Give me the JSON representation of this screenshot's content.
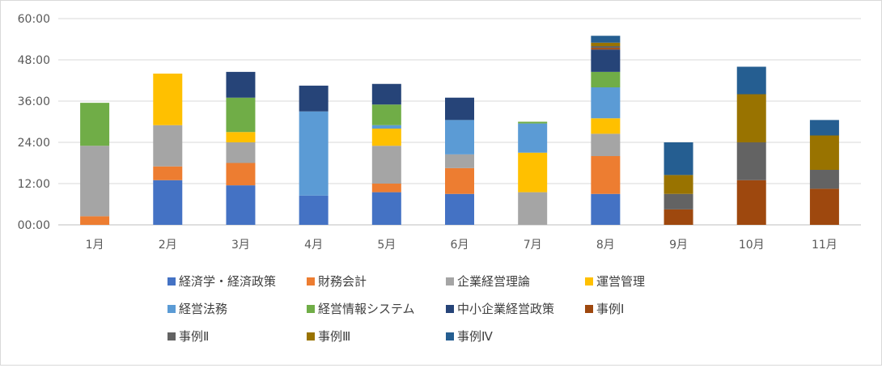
{
  "chart_data": {
    "type": "bar",
    "stacked": true,
    "categories": [
      "1月",
      "2月",
      "3月",
      "4月",
      "5月",
      "6月",
      "7月",
      "8月",
      "9月",
      "10月",
      "11月"
    ],
    "y_tick_labels": [
      "00:00",
      "12:00",
      "24:00",
      "36:00",
      "48:00",
      "60:00"
    ],
    "ylim_hours": [
      0,
      60
    ],
    "y_tick_step_hours": 12,
    "grid": true,
    "legend_position": "bottom",
    "series": [
      {
        "name": "経済学・経済政策",
        "color": "#4472C4",
        "values": [
          0,
          13,
          11.5,
          8.5,
          9.5,
          9,
          0,
          9,
          0,
          0,
          0
        ]
      },
      {
        "name": "財務会計",
        "color": "#ED7D31",
        "values": [
          2.5,
          4,
          6.5,
          0,
          2.5,
          7.5,
          0,
          11,
          0,
          0,
          0
        ]
      },
      {
        "name": "企業経営理論",
        "color": "#A5A5A5",
        "values": [
          20.5,
          12,
          6,
          0,
          11,
          4,
          9.5,
          6.5,
          0,
          0,
          0
        ]
      },
      {
        "name": "運営管理",
        "color": "#FFC000",
        "values": [
          0,
          15,
          3,
          0,
          5,
          0,
          11.5,
          4.5,
          0,
          0,
          0
        ]
      },
      {
        "name": "経営法務",
        "color": "#5B9BD5",
        "values": [
          0,
          0,
          0,
          24.5,
          1,
          10,
          8.5,
          9,
          0,
          0,
          0
        ]
      },
      {
        "name": "経営情報システム",
        "color": "#70AD47",
        "values": [
          12.5,
          0,
          10,
          0,
          6,
          0,
          0.5,
          4.5,
          0,
          0,
          0
        ]
      },
      {
        "name": "中小企業経営政策",
        "color": "#264478",
        "values": [
          0,
          0,
          7.5,
          7.5,
          6,
          6.5,
          0,
          6.5,
          0,
          0,
          0
        ]
      },
      {
        "name": "事例Ⅰ",
        "color": "#9E480E",
        "values": [
          0,
          0,
          0,
          0,
          0,
          0,
          0,
          0.5,
          4.5,
          13,
          10.5
        ]
      },
      {
        "name": "事例Ⅱ",
        "color": "#636363",
        "values": [
          0,
          0,
          0,
          0,
          0,
          0,
          0,
          0.5,
          4.5,
          11,
          5.5
        ]
      },
      {
        "name": "事例Ⅲ",
        "color": "#997300",
        "values": [
          0,
          0,
          0,
          0,
          0,
          0,
          0,
          1,
          5.5,
          14,
          10
        ]
      },
      {
        "name": "事例Ⅳ",
        "color": "#255E91",
        "values": [
          0,
          0,
          0,
          0,
          0,
          0,
          0,
          2,
          9.5,
          8,
          4.5
        ]
      }
    ]
  }
}
